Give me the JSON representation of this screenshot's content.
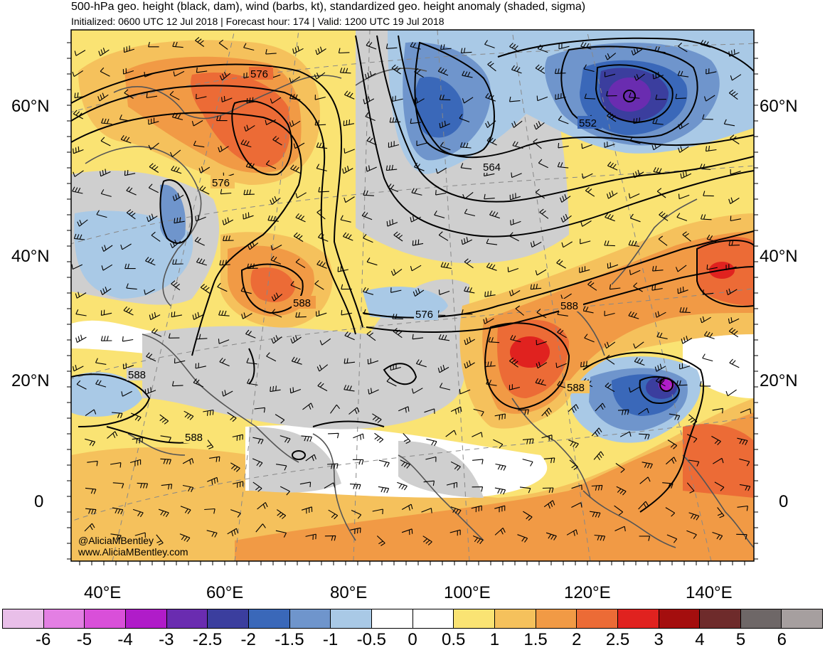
{
  "header": {
    "title": "500-hPa geo. height (black, dam), wind (barbs, kt), standardized geo. height anomaly (shaded, sigma)",
    "subtitle": "Initialized: 0600 UTC 12 Jul 2018 | Forecast hour: 174 | Valid: 1200 UTC 19 Jul 2018"
  },
  "map": {
    "lat_labels": [
      "60°N",
      "40°N",
      "20°N",
      "0"
    ],
    "lon_labels": [
      "40°E",
      "60°E",
      "80°E",
      "100°E",
      "120°E",
      "140°E"
    ],
    "contour_labels": [
      "576",
      "576",
      "588",
      "588",
      "588",
      "588",
      "576",
      "564",
      "552",
      "588"
    ],
    "credit_handle": "@AliciaMBentley",
    "credit_site": "www.AliciaMBentley.com"
  },
  "colorbar": {
    "ticks": [
      "-6",
      "-5",
      "-4",
      "-3",
      "-2.5",
      "-2",
      "-1.5",
      "-1",
      "-0.5",
      "0",
      "0.5",
      "1",
      "1.5",
      "2",
      "2.5",
      "3",
      "4",
      "5",
      "6"
    ],
    "colors": [
      "#e9bfe9",
      "#e37fe3",
      "#d94fd9",
      "#b01cc9",
      "#6a2cb0",
      "#3b3e9e",
      "#3a68b9",
      "#6f95cc",
      "#a9c9e6",
      "#ffffff",
      "#ffffff",
      "#fae373",
      "#f5c15c",
      "#f19a45",
      "#ec6b36",
      "#e0221f",
      "#a40e0e",
      "#6e2b2b",
      "#6e6767",
      "#a69f9f"
    ]
  }
}
